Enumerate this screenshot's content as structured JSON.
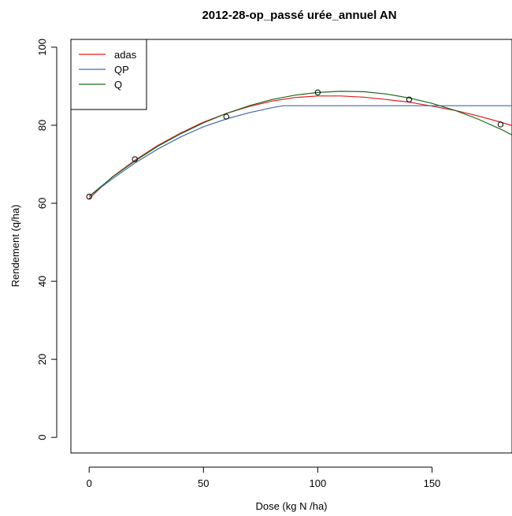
{
  "chart_data": {
    "type": "line",
    "title": "2012-28-op_passé urée_annuel AN",
    "xlabel": "Dose (kg N /ha)",
    "ylabel": "Rendement (q/ha)",
    "xlim": [
      -8,
      185
    ],
    "ylim": [
      -4,
      102
    ],
    "xticks": [
      0,
      50,
      100,
      150
    ],
    "yticks": [
      0,
      20,
      40,
      60,
      80,
      100
    ],
    "grid": false,
    "legend_position": "top-left",
    "points": {
      "x": [
        0,
        20,
        60,
        100,
        140,
        180
      ],
      "y": [
        61.7,
        71.3,
        82.2,
        88.4,
        86.6,
        80.2
      ]
    },
    "series": [
      {
        "name": "adas",
        "color": "#E31A1C",
        "x": [
          0,
          10,
          20,
          30,
          40,
          50,
          60,
          70,
          80,
          90,
          100,
          110,
          120,
          130,
          140,
          150,
          160,
          170,
          180,
          185
        ],
        "y": [
          61.2,
          66.7,
          71.0,
          74.8,
          78.0,
          80.8,
          83.0,
          84.8,
          86.2,
          87.1,
          87.5,
          87.5,
          87.2,
          86.6,
          85.9,
          84.9,
          83.8,
          82.4,
          80.8,
          79.9
        ]
      },
      {
        "name": "QP",
        "color": "#4169B4",
        "x": [
          0,
          10,
          20,
          30,
          40,
          50,
          60,
          70,
          80,
          85,
          185
        ],
        "y": [
          61.8,
          66.2,
          70.3,
          73.9,
          77.0,
          79.6,
          81.6,
          83.2,
          84.5,
          85.0,
          85.0
        ]
      },
      {
        "name": "Q",
        "color": "#1A6B1A",
        "x": [
          0,
          10,
          20,
          30,
          40,
          50,
          60,
          70,
          80,
          90,
          100,
          110,
          120,
          130,
          140,
          150,
          160,
          170,
          180,
          185
        ],
        "y": [
          61.8,
          66.6,
          70.8,
          74.6,
          77.8,
          80.6,
          83.0,
          85.0,
          86.6,
          87.7,
          88.4,
          88.7,
          88.6,
          88.0,
          87.0,
          85.6,
          83.8,
          81.6,
          79.0,
          77.5
        ]
      }
    ]
  }
}
